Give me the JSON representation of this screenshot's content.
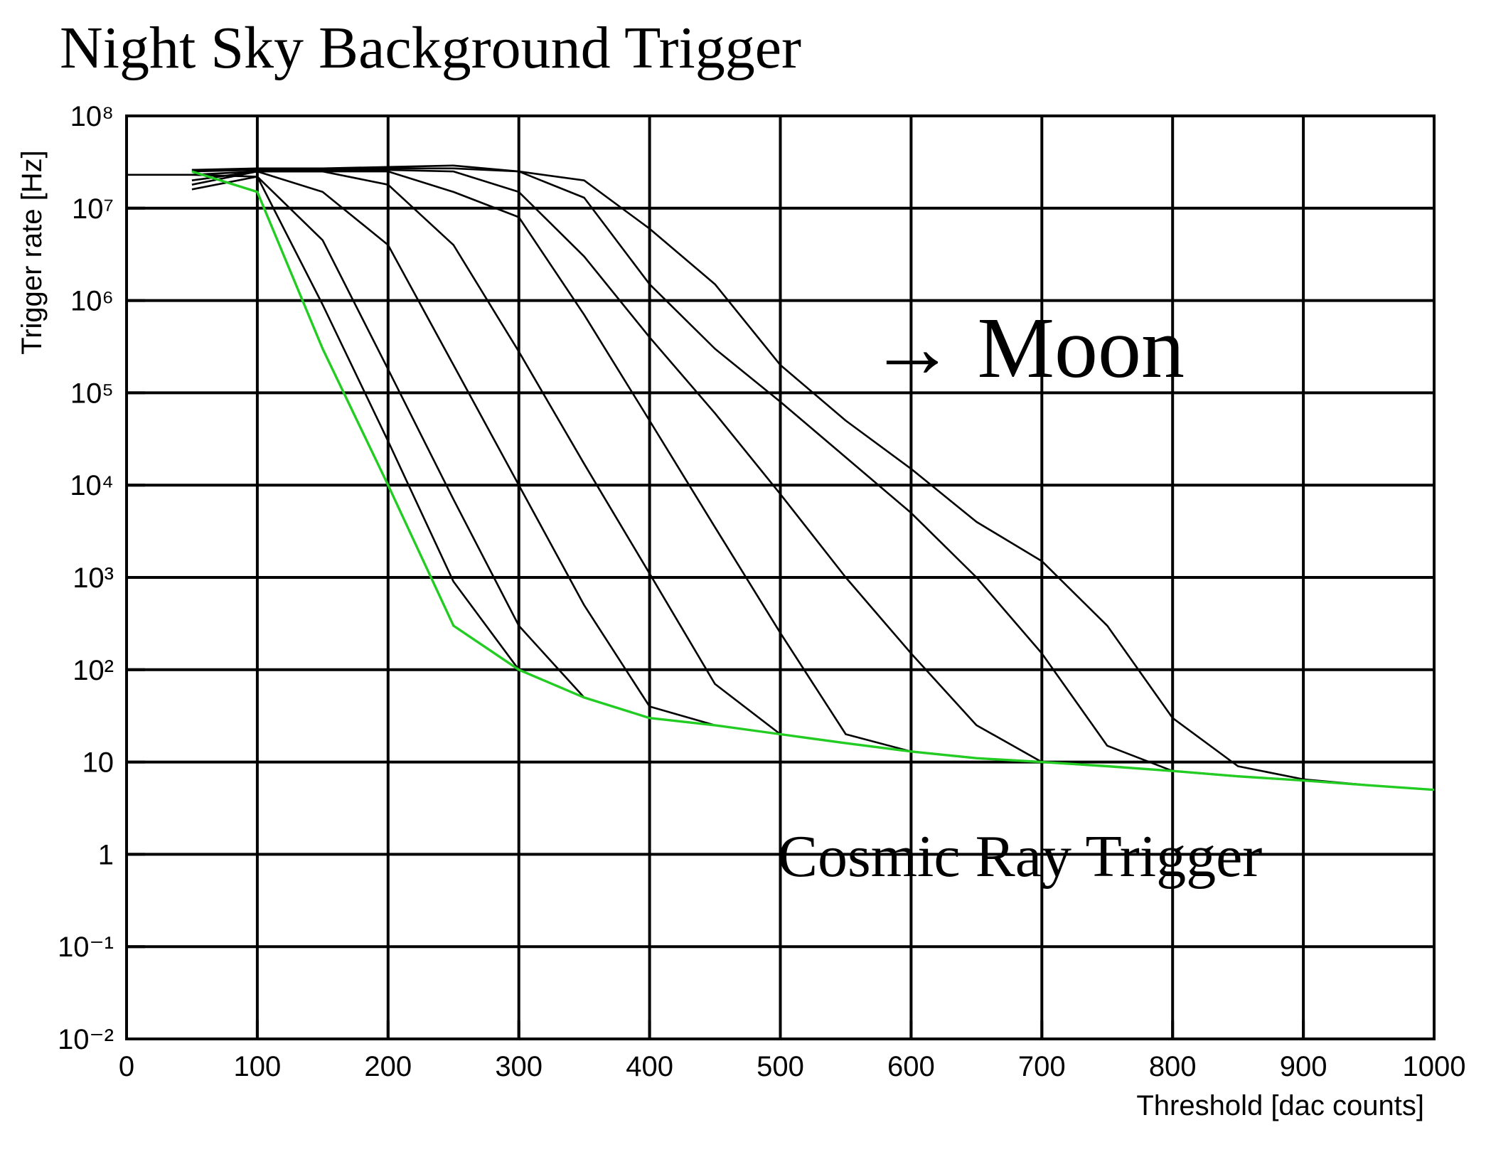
{
  "chart_data": {
    "type": "line",
    "title": "Night Sky Background Trigger",
    "xlabel": "Threshold [dac counts]",
    "ylabel": "Trigger rate [Hz]",
    "annotations": [
      "→ Moon",
      "Cosmic Ray Trigger"
    ],
    "log_y": true,
    "grid": true,
    "xlim": [
      0,
      1000
    ],
    "ylim": [
      0.01,
      100000000
    ],
    "xticks": [
      0,
      100,
      200,
      300,
      400,
      500,
      600,
      700,
      800,
      900,
      1000
    ],
    "yticks": [
      {
        "value": 0.01,
        "label": "10⁻²"
      },
      {
        "value": 0.1,
        "label": "10⁻¹"
      },
      1,
      10,
      {
        "value": 100,
        "label": "10²"
      },
      {
        "value": 1000,
        "label": "10³"
      },
      {
        "value": 10000,
        "label": "10⁴"
      },
      {
        "value": 100000,
        "label": "10⁵"
      },
      {
        "value": 1000000,
        "label": "10⁶"
      },
      {
        "value": 10000000,
        "label": "10⁷"
      },
      {
        "value": 100000000,
        "label": "10⁸"
      }
    ],
    "x": [
      0,
      50,
      100,
      150,
      200,
      250,
      300,
      350,
      400,
      450,
      500,
      550,
      600,
      650,
      700,
      750,
      800,
      850,
      900,
      950,
      1000
    ],
    "series": [
      {
        "color": "#000000",
        "values": [
          23000000,
          23000000,
          22000000,
          900000,
          30000,
          900,
          100,
          50,
          30,
          25,
          20,
          16,
          13,
          11,
          10,
          9,
          8,
          7,
          6.3,
          5.6,
          null
        ]
      },
      {
        "color": "#000000",
        "values": [
          null,
          16000000,
          22000000,
          4500000,
          180000,
          7000,
          300,
          50,
          30,
          25,
          20,
          16,
          13,
          11,
          10,
          9,
          8,
          7,
          6.3,
          5.6,
          null
        ]
      },
      {
        "color": "#000000",
        "values": [
          null,
          18000000,
          25000000,
          15000000,
          4000000,
          200000,
          10000,
          500,
          40,
          25,
          20,
          16,
          13,
          11,
          10,
          9,
          8,
          7,
          6.3,
          5.6,
          null
        ]
      },
      {
        "color": "#000000",
        "values": [
          null,
          20000000,
          25000000,
          25000000,
          18000000,
          4000000,
          280000,
          17000,
          1100,
          70,
          20,
          16,
          13,
          11,
          10,
          9,
          8,
          7,
          6.3,
          5.6,
          null
        ]
      },
      {
        "color": "#000000",
        "values": [
          null,
          23000000,
          25000000,
          25000000,
          25000000,
          15000000,
          8000000,
          700000,
          50000,
          3500,
          250,
          20,
          13,
          11,
          10,
          9,
          8,
          7,
          6.3,
          5.6,
          null
        ]
      },
      {
        "color": "#000000",
        "values": [
          null,
          25000000,
          26000000,
          26000000,
          26000000,
          25000000,
          15000000,
          3000000,
          400000,
          60000,
          8000,
          1000,
          150,
          25,
          10,
          9,
          8,
          7,
          6.3,
          5.6,
          null
        ]
      },
      {
        "color": "#000000",
        "values": [
          null,
          26000000,
          26000000,
          27000000,
          27000000,
          27000000,
          25000000,
          13000000,
          1500000,
          300000,
          80000,
          20000,
          5000,
          1000,
          150,
          15,
          8,
          7,
          6.3,
          5.6,
          null
        ]
      },
      {
        "color": "#000000",
        "values": [
          null,
          26000000,
          27000000,
          27000000,
          28000000,
          29000000,
          25000000,
          20000000,
          6000000,
          1500000,
          200000,
          50000,
          15000,
          4000,
          1500,
          300,
          30,
          9,
          6.5,
          5.6,
          null
        ]
      },
      {
        "color": "#22cc22",
        "values": [
          null,
          25000000,
          15000000,
          300000,
          10000,
          300,
          100,
          50,
          30,
          25,
          20,
          16,
          13,
          11,
          10,
          9,
          8,
          7,
          6.3,
          5.6,
          5
        ]
      }
    ]
  }
}
